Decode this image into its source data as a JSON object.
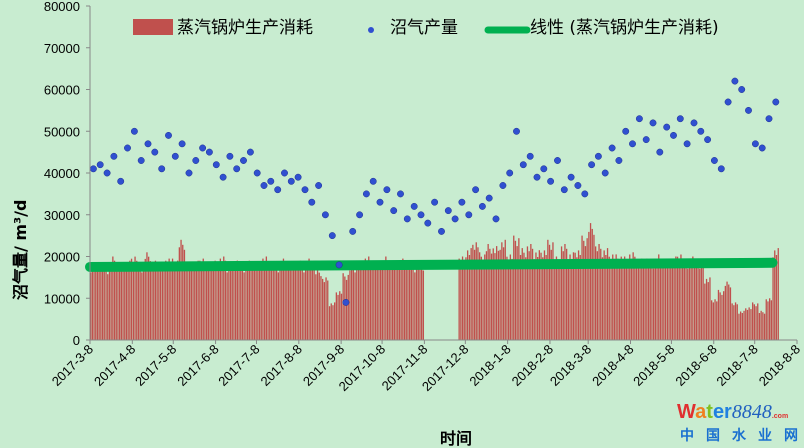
{
  "chart_data": {
    "type": "bar+scatter+line",
    "xlabel": "时间",
    "ylabel": "沼气量/ m³/d",
    "ylim": [
      0,
      80000
    ],
    "yticks": [
      "0",
      "10000",
      "20000",
      "30000",
      "40000",
      "50000",
      "60000",
      "70000",
      "80000"
    ],
    "xticks": [
      "2017-3-8",
      "2017-4-8",
      "2017-5-8",
      "2017-6-8",
      "2017-7-8",
      "2017-8-8",
      "2017-9-8",
      "2017-10-8",
      "2017-11-8",
      "2017-12-8",
      "2018-1-8",
      "2018-2-8",
      "2018-3-8",
      "2018-4-8",
      "2018-5-8",
      "2018-6-8",
      "2018-7-8",
      "2018-8-8"
    ],
    "xlim": [
      "2017-3-8",
      "2018-8-8"
    ],
    "legend": {
      "placement": "top",
      "entries": [
        "蒸汽锅炉生产消耗",
        "沼气产量",
        "线性 (蒸汽锅炉生产消耗)"
      ]
    },
    "colors": {
      "bar": "#c0504d",
      "scatter": "#3050d0",
      "trend": "#00b050",
      "background": "#c8ecd0"
    },
    "grid": false,
    "dates": [
      "2017-3-8",
      "2017-3-13",
      "2017-3-18",
      "2017-3-23",
      "2017-3-28",
      "2017-4-2",
      "2017-4-7",
      "2017-4-12",
      "2017-4-17",
      "2017-4-22",
      "2017-4-27",
      "2017-5-2",
      "2017-5-7",
      "2017-5-12",
      "2017-5-17",
      "2017-5-22",
      "2017-5-27",
      "2017-6-1",
      "2017-6-6",
      "2017-6-11",
      "2017-6-16",
      "2017-6-21",
      "2017-6-26",
      "2017-7-1",
      "2017-7-6",
      "2017-7-11",
      "2017-7-16",
      "2017-7-21",
      "2017-7-26",
      "2017-7-31",
      "2017-8-5",
      "2017-8-10",
      "2017-8-15",
      "2017-8-20",
      "2017-8-25",
      "2017-8-30",
      "2017-9-4",
      "2017-9-9",
      "2017-9-14",
      "2017-9-19",
      "2017-9-24",
      "2017-9-29",
      "2017-10-4",
      "2017-10-9",
      "2017-10-14",
      "2017-10-19",
      "2017-10-24",
      "2017-10-29",
      "2017-11-3",
      "2017-11-8",
      "2017-11-13",
      "2017-11-18",
      "2017-11-23",
      "2017-11-28",
      "2017-12-3",
      "2017-12-8",
      "2017-12-13",
      "2017-12-18",
      "2017-12-23",
      "2017-12-28",
      "2018-1-2",
      "2018-1-7",
      "2018-1-12",
      "2018-1-17",
      "2018-1-22",
      "2018-1-27",
      "2018-2-1",
      "2018-2-6",
      "2018-2-11",
      "2018-2-16",
      "2018-2-21",
      "2018-2-26",
      "2018-3-3",
      "2018-3-8",
      "2018-3-13",
      "2018-3-18",
      "2018-3-23",
      "2018-3-28",
      "2018-4-2",
      "2018-4-7",
      "2018-4-12",
      "2018-4-17",
      "2018-4-22",
      "2018-4-27",
      "2018-5-2",
      "2018-5-7",
      "2018-5-12",
      "2018-5-17",
      "2018-5-22",
      "2018-5-27",
      "2018-6-1",
      "2018-6-6",
      "2018-6-11",
      "2018-6-16",
      "2018-6-21",
      "2018-6-26",
      "2018-7-1",
      "2018-7-6",
      "2018-7-11",
      "2018-7-16",
      "2018-7-21"
    ],
    "series": [
      {
        "name": "蒸汽锅炉生产消耗",
        "type": "bar",
        "values": [
          18000,
          19000,
          17500,
          20000,
          18000,
          19000,
          20500,
          18000,
          21000,
          19000,
          18500,
          20000,
          19500,
          24000,
          18500,
          19000,
          20000,
          18500,
          19000,
          20000,
          18000,
          19500,
          18000,
          19000,
          18500,
          20000,
          19000,
          18000,
          19500,
          18500,
          19000,
          18000,
          19500,
          17000,
          15000,
          9000,
          12000,
          16000,
          18000,
          19000,
          20000,
          19500,
          19000,
          20000,
          18500,
          19500,
          19000,
          18000,
          18500,
          null,
          null,
          null,
          null,
          null,
          20000,
          22000,
          24000,
          21000,
          23000,
          22500,
          24000,
          21000,
          25000,
          22000,
          23000,
          21500,
          22000,
          24000,
          20000,
          23000,
          21000,
          22000,
          25000,
          28000,
          23000,
          22000,
          21000,
          20500,
          20000,
          21000,
          19500,
          20000,
          19000,
          20500,
          19500,
          20000,
          21000,
          19000,
          20000,
          18500,
          15000,
          10000,
          12000,
          14000,
          9000,
          7000,
          8000,
          9000,
          7000,
          10000,
          22000
        ]
      },
      {
        "name": "沼气产量",
        "type": "scatter",
        "values": [
          41000,
          42000,
          40000,
          44000,
          38000,
          46000,
          50000,
          43000,
          47000,
          45000,
          41000,
          49000,
          44000,
          47000,
          40000,
          43000,
          46000,
          45000,
          42000,
          39000,
          44000,
          41000,
          43000,
          45000,
          40000,
          37000,
          38000,
          36000,
          40000,
          38000,
          39000,
          36000,
          33000,
          37000,
          30000,
          25000,
          18000,
          9000,
          26000,
          30000,
          35000,
          38000,
          33000,
          36000,
          31000,
          35000,
          29000,
          32000,
          30000,
          28000,
          33000,
          26000,
          31000,
          29000,
          33000,
          30000,
          36000,
          32000,
          34000,
          29000,
          37000,
          40000,
          50000,
          42000,
          44000,
          39000,
          41000,
          38000,
          43000,
          36000,
          39000,
          37000,
          35000,
          42000,
          44000,
          40000,
          46000,
          43000,
          50000,
          47000,
          53000,
          48000,
          52000,
          45000,
          51000,
          49000,
          53000,
          47000,
          52000,
          50000,
          48000,
          43000,
          41000,
          57000,
          62000,
          60000,
          55000,
          47000,
          46000,
          53000,
          57000
        ]
      },
      {
        "name": "线性 (蒸汽锅炉生产消耗)",
        "type": "line",
        "x": [
          "2017-3-8",
          "2018-7-21"
        ],
        "values": [
          17500,
          18500
        ]
      }
    ]
  },
  "watermark": {
    "brand": "water8848",
    "suffix": ".com",
    "subtitle": "中国水业网"
  }
}
